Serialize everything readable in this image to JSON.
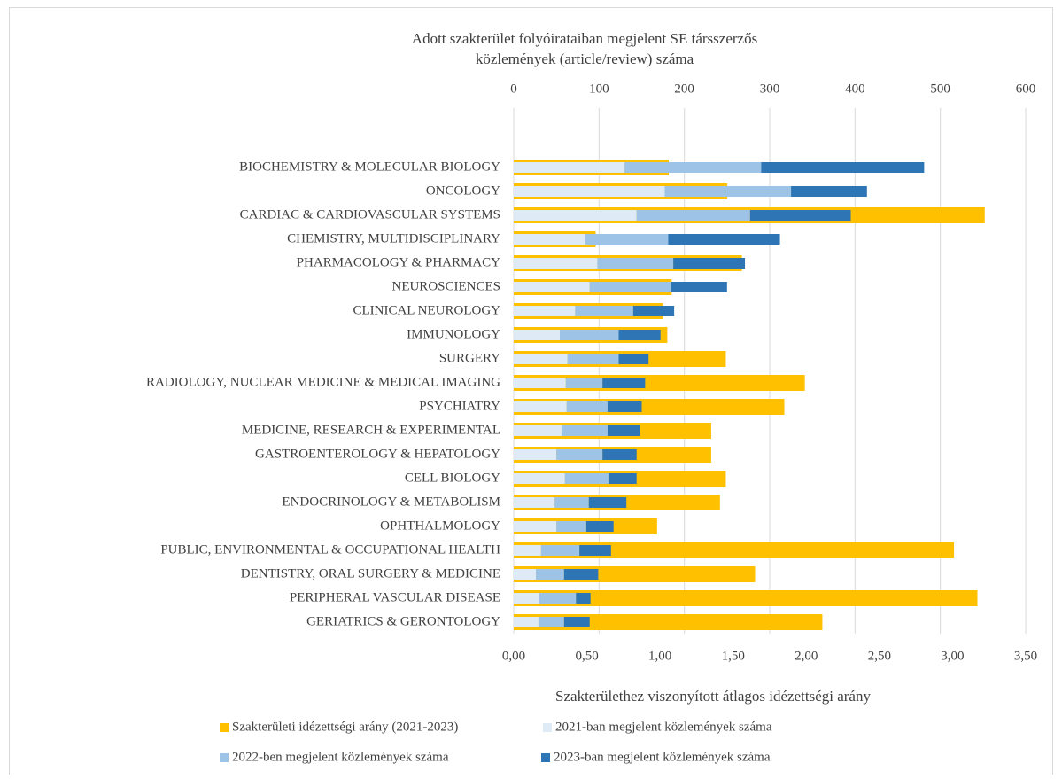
{
  "chart_data": {
    "type": "bar",
    "orientation": "horizontal",
    "stacked": true,
    "x2_label": [
      "Adott szakterület folyóirataiban megjelent SE társszerzős",
      "közlemények (article/review) száma"
    ],
    "x_label": "Szakterülethez viszonyított átlagos idézettségi arány",
    "categories": [
      "BIOCHEMISTRY & MOLECULAR BIOLOGY",
      "ONCOLOGY",
      "CARDIAC & CARDIOVASCULAR SYSTEMS",
      "CHEMISTRY, MULTIDISCIPLINARY",
      "PHARMACOLOGY & PHARMACY",
      "NEUROSCIENCES",
      "CLINICAL NEUROLOGY",
      "IMMUNOLOGY",
      "SURGERY",
      "RADIOLOGY, NUCLEAR MEDICINE & MEDICAL IMAGING",
      "PSYCHIATRY",
      "MEDICINE, RESEARCH & EXPERIMENTAL",
      "GASTROENTEROLOGY & HEPATOLOGY",
      "CELL BIOLOGY",
      "ENDOCRINOLOGY & METABOLISM",
      "OPHTHALMOLOGY",
      "PUBLIC, ENVIRONMENTAL & OCCUPATIONAL HEALTH",
      "DENTISTRY, ORAL SURGERY & MEDICINE",
      "PERIPHERAL VASCULAR DISEASE",
      "GERIATRICS & GERONTOLOGY"
    ],
    "series": [
      {
        "name": "Szakterületi idézettségi arány (2021-2023)",
        "color": "#ffc000",
        "axis": "x",
        "values": [
          1.06,
          1.46,
          3.22,
          0.56,
          1.56,
          1.08,
          1.02,
          1.05,
          1.45,
          1.99,
          1.85,
          1.35,
          1.35,
          1.45,
          1.41,
          0.98,
          3.01,
          1.65,
          3.17,
          2.11
        ]
      },
      {
        "name": "2021-ban megjelent közlemények száma",
        "color": "#deebf7",
        "axis": "x2",
        "values": [
          130,
          177,
          144,
          84,
          98,
          89,
          72,
          54,
          63,
          61,
          62,
          56,
          50,
          60,
          48,
          50,
          32,
          26,
          30,
          29
        ]
      },
      {
        "name": "2022-ben megjelent közlemények száma",
        "color": "#9dc3e6",
        "axis": "x2",
        "values": [
          160,
          148,
          133,
          97,
          89,
          95,
          68,
          69,
          60,
          43,
          48,
          54,
          54,
          51,
          40,
          35,
          45,
          33,
          43,
          30
        ]
      },
      {
        "name": "2023-ban megjelent közlemények száma",
        "color": "#2e75b6",
        "axis": "x2",
        "values": [
          191,
          89,
          118,
          131,
          84,
          66,
          48,
          49,
          35,
          50,
          40,
          38,
          40,
          33,
          44,
          32,
          37,
          40,
          17,
          30
        ]
      }
    ],
    "xlim": [
      0,
      3.5
    ],
    "xticks": [
      {
        "value": 0,
        "label": "0,00"
      },
      {
        "value": 0.5,
        "label": "0,50"
      },
      {
        "value": 1,
        "label": "1,00"
      },
      {
        "value": 1.5,
        "label": "1,50"
      },
      {
        "value": 2,
        "label": "2,00"
      },
      {
        "value": 2.5,
        "label": "2,50"
      },
      {
        "value": 3,
        "label": "3,00"
      },
      {
        "value": 3.5,
        "label": "3,50"
      }
    ],
    "x2lim": [
      0,
      600
    ],
    "x2ticks": [
      0,
      100,
      200,
      300,
      400,
      500,
      600
    ],
    "grid": true,
    "legend": "bottom"
  }
}
